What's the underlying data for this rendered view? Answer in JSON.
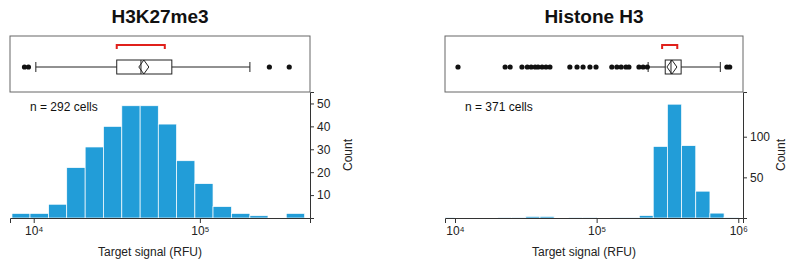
{
  "chart_data": [
    {
      "type": "histogram",
      "title": "H3K27me3",
      "annotation": "n = 292 cells",
      "x_label": "Target signal (RFU)",
      "y_label": "Count",
      "bins": [
        7400,
        9500,
        12300,
        15800,
        20400,
        26300,
        33900,
        43700,
        56200,
        72400,
        93300,
        120000,
        155000,
        200000,
        257000,
        331000,
        427000
      ],
      "counts": [
        2,
        2,
        6,
        22,
        31,
        40,
        49,
        49,
        41,
        25,
        15,
        5,
        2,
        1,
        0,
        2
      ],
      "color": "#229dd8",
      "log": "x",
      "xlim": [
        7200,
        460000
      ],
      "xticks": [
        {
          "value": 10000,
          "label": "10⁴"
        },
        {
          "value": 100000,
          "label": "10⁵"
        }
      ],
      "ylim": [
        0,
        55
      ],
      "yticks": [
        10,
        20,
        30,
        40,
        50
      ],
      "box": {
        "whisker_low": 10300,
        "q1": 31600,
        "median": 44200,
        "mean": 46000,
        "q3": 67800,
        "whisker_high": 200000,
        "shortest_half": [
          31600,
          61500
        ],
        "outliers": [
          8800,
          9300,
          262000,
          345000
        ]
      }
    },
    {
      "type": "histogram",
      "title": "Histone H3",
      "annotation": "n = 371 cells",
      "x_label": "Target signal (RFU)",
      "y_label": "Count",
      "bins": [
        7940,
        10000,
        12600,
        15800,
        20000,
        25100,
        31600,
        39800,
        50100,
        63100,
        79400,
        100000,
        126000,
        158000,
        200000,
        251000,
        316000,
        398000,
        501000,
        631000,
        794000,
        1000000
      ],
      "counts": [
        1,
        0,
        0,
        0,
        1,
        1,
        2,
        2,
        0,
        1,
        1,
        0,
        1,
        1,
        3,
        88,
        140,
        89,
        33,
        6,
        1
      ],
      "color": "#229dd8",
      "log": "x",
      "xlim": [
        8500,
        1080000
      ],
      "xticks": [
        {
          "value": 10000,
          "label": "10⁴"
        },
        {
          "value": 100000,
          "label": "10⁵"
        },
        {
          "value": 1000000,
          "label": "10⁶"
        }
      ],
      "ylim": [
        0,
        155
      ],
      "yticks": [
        50,
        100
      ],
      "box": {
        "whisker_low": 231000,
        "q1": 305000,
        "median": 335000,
        "mean": 340000,
        "q3": 395000,
        "whisker_high": 747000,
        "shortest_half": [
          290000,
          371000
        ],
        "outliers": [
          10500,
          22600,
          24500,
          29700,
          32400,
          34500,
          36800,
          38600,
          41200,
          43900,
          46800,
          64700,
          72700,
          80200,
          89700,
          99000,
          128000,
          139000,
          149000,
          161000,
          169000,
          199000,
          213000,
          228000,
          831000,
          870000
        ]
      }
    }
  ]
}
